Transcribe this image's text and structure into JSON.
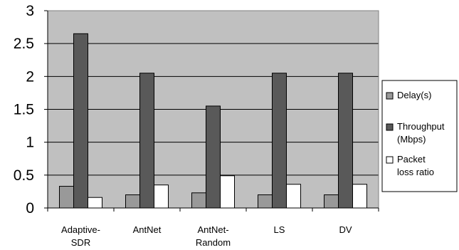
{
  "chart_data": {
    "type": "bar",
    "categories": [
      [
        "Adaptive-",
        "SDR"
      ],
      [
        "AntNet"
      ],
      [
        "AntNet-",
        "Random"
      ],
      [
        "LS"
      ],
      [
        "DV"
      ]
    ],
    "series": [
      {
        "name": [
          "Delay(s)"
        ],
        "values": [
          0.33,
          0.2,
          0.23,
          0.2,
          0.2
        ],
        "color": "#999999"
      },
      {
        "name": [
          "Throughput",
          "(Mbps)"
        ],
        "values": [
          2.65,
          2.05,
          1.55,
          2.05,
          2.05
        ],
        "color": "#595959"
      },
      {
        "name": [
          "Packet",
          "loss ratio"
        ],
        "values": [
          0.16,
          0.35,
          0.49,
          0.36,
          0.36
        ],
        "color": "#ffffff"
      }
    ],
    "yticks": [
      "0",
      "0.5",
      "1",
      "1.5",
      "2",
      "2.5",
      "3"
    ],
    "ylim": [
      0,
      3
    ],
    "plot_background": "#c0c0c0",
    "grid": true,
    "legend_position": "right",
    "title": "",
    "xlabel": "",
    "ylabel": ""
  }
}
